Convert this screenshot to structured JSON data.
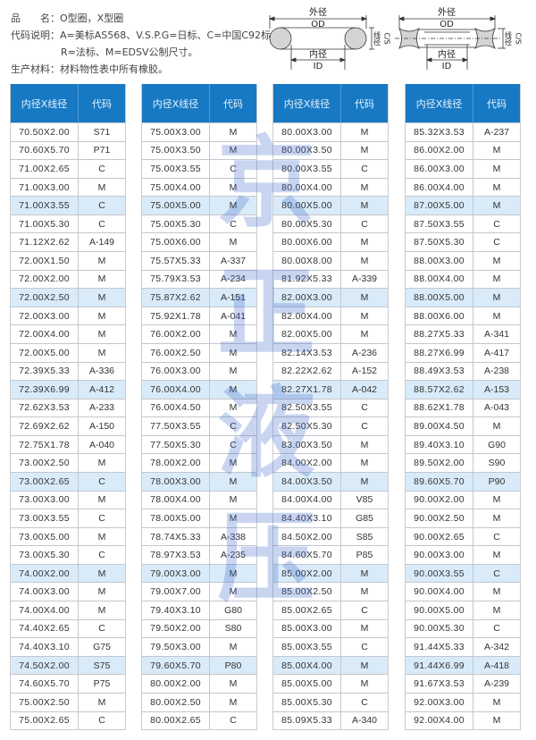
{
  "info": {
    "name_line": "品　　名：O型圈，X型圈",
    "code_line1": "代码说明：A=美标AS568、V.S.P.G=日标、C=中国C92标、",
    "code_line2": "R=法标、M=EDSV公制尺寸。",
    "material_line": "生产材料：材料物性表中所有橡胶。"
  },
  "diagrams": {
    "od_cn": "外径",
    "od": "OD",
    "id_cn": "内径",
    "id": "ID",
    "cs_cn": "线径",
    "cs": "C/S"
  },
  "watermark": [
    "京",
    "正",
    "液",
    "压"
  ],
  "colors": {
    "header": "#1779c4",
    "highlight_row": "#d9ebf8"
  },
  "header": {
    "size": "内径X线径",
    "code": "代码"
  },
  "tables": [
    {
      "rows": [
        [
          "70.50X2.00",
          "S71"
        ],
        [
          "70.60X5.70",
          "P71"
        ],
        [
          "71.00X2.65",
          "C"
        ],
        [
          "71.00X3.00",
          "M"
        ],
        [
          "71.00X3.55",
          "C"
        ],
        [
          "71.00X5.30",
          "C"
        ],
        [
          "71.12X2.62",
          "A-149"
        ],
        [
          "72.00X1.50",
          "M"
        ],
        [
          "72.00X2.00",
          "M"
        ],
        [
          "72.00X2.50",
          "M"
        ],
        [
          "72.00X3.00",
          "M"
        ],
        [
          "72.00X4.00",
          "M"
        ],
        [
          "72.00X5.00",
          "M"
        ],
        [
          "72.39X5.33",
          "A-336"
        ],
        [
          "72.39X6.99",
          "A-412"
        ],
        [
          "72.62X3.53",
          "A-233"
        ],
        [
          "72.69X2.62",
          "A-150"
        ],
        [
          "72.75X1.78",
          "A-040"
        ],
        [
          "73.00X2.50",
          "M"
        ],
        [
          "73.00X2.65",
          "C"
        ],
        [
          "73.00X3.00",
          "M"
        ],
        [
          "73.00X3.55",
          "C"
        ],
        [
          "73.00X5.00",
          "M"
        ],
        [
          "73.00X5.30",
          "C"
        ],
        [
          "74.00X2.00",
          "M"
        ],
        [
          "74.00X3.00",
          "M"
        ],
        [
          "74.00X4.00",
          "M"
        ],
        [
          "74.40X2.65",
          "C"
        ],
        [
          "74.40X3.10",
          "G75"
        ],
        [
          "74.50X2.00",
          "S75"
        ],
        [
          "74.60X5.70",
          "P75"
        ],
        [
          "75.00X2.50",
          "M"
        ],
        [
          "75.00X2.65",
          "C"
        ]
      ]
    },
    {
      "rows": [
        [
          "75.00X3.00",
          "M"
        ],
        [
          "75.00X3.50",
          "M"
        ],
        [
          "75.00X3.55",
          "C"
        ],
        [
          "75.00X4.00",
          "M"
        ],
        [
          "75.00X5.00",
          "M"
        ],
        [
          "75.00X5.30",
          "C"
        ],
        [
          "75.00X6.00",
          "M"
        ],
        [
          "75.57X5.33",
          "A-337"
        ],
        [
          "75.79X3.53",
          "A-234"
        ],
        [
          "75.87X2.62",
          "A-151"
        ],
        [
          "75.92X1.78",
          "A-041"
        ],
        [
          "76.00X2.00",
          "M"
        ],
        [
          "76.00X2.50",
          "M"
        ],
        [
          "76.00X3.00",
          "M"
        ],
        [
          "76.00X4.00",
          "M"
        ],
        [
          "76.00X4.50",
          "M"
        ],
        [
          "77.50X3.55",
          "C"
        ],
        [
          "77.50X5.30",
          "C"
        ],
        [
          "78.00X2.00",
          "M"
        ],
        [
          "78.00X3.00",
          "M"
        ],
        [
          "78.00X4.00",
          "M"
        ],
        [
          "78.00X5.00",
          "M"
        ],
        [
          "78.74X5.33",
          "A-338"
        ],
        [
          "78.97X3.53",
          "A-235"
        ],
        [
          "79.00X3.00",
          "M"
        ],
        [
          "79.00X7.00",
          "M"
        ],
        [
          "79.40X3.10",
          "G80"
        ],
        [
          "79.50X2.00",
          "S80"
        ],
        [
          "79.50X3.00",
          "M"
        ],
        [
          "79.60X5.70",
          "P80"
        ],
        [
          "80.00X2.00",
          "M"
        ],
        [
          "80.00X2.50",
          "M"
        ],
        [
          "80.00X2.65",
          "C"
        ]
      ]
    },
    {
      "rows": [
        [
          "80.00X3.00",
          "M"
        ],
        [
          "80.00X3.50",
          "M"
        ],
        [
          "80.00X3.55",
          "C"
        ],
        [
          "80.00X4.00",
          "M"
        ],
        [
          "80.00X5.00",
          "M"
        ],
        [
          "80.00X5.30",
          "C"
        ],
        [
          "80.00X6.00",
          "M"
        ],
        [
          "80.00X8.00",
          "M"
        ],
        [
          "81.92X5.33",
          "A-339"
        ],
        [
          "82.00X3.00",
          "M"
        ],
        [
          "82.00X4.00",
          "M"
        ],
        [
          "82.00X5.00",
          "M"
        ],
        [
          "82.14X3.53",
          "A-236"
        ],
        [
          "82.22X2.62",
          "A-152"
        ],
        [
          "82.27X1.78",
          "A-042"
        ],
        [
          "82.50X3.55",
          "C"
        ],
        [
          "82.50X5.30",
          "C"
        ],
        [
          "83.00X3.50",
          "M"
        ],
        [
          "84.00X2.00",
          "M"
        ],
        [
          "84.00X3.50",
          "M"
        ],
        [
          "84.00X4.00",
          "V85"
        ],
        [
          "84.40X3.10",
          "G85"
        ],
        [
          "84.50X2.00",
          "S85"
        ],
        [
          "84.60X5.70",
          "P85"
        ],
        [
          "85.00X2.00",
          "M"
        ],
        [
          "85.00X2.50",
          "M"
        ],
        [
          "85.00X2.65",
          "C"
        ],
        [
          "85.00X3.00",
          "M"
        ],
        [
          "85.00X3.55",
          "C"
        ],
        [
          "85.00X4.00",
          "M"
        ],
        [
          "85.00X5.00",
          "M"
        ],
        [
          "85.00X5.30",
          "C"
        ],
        [
          "85.09X5.33",
          "A-340"
        ]
      ]
    },
    {
      "rows": [
        [
          "85.32X3.53",
          "A-237"
        ],
        [
          "86.00X2.00",
          "M"
        ],
        [
          "86.00X3.00",
          "M"
        ],
        [
          "86.00X4.00",
          "M"
        ],
        [
          "87.00X5.00",
          "M"
        ],
        [
          "87.50X3.55",
          "C"
        ],
        [
          "87.50X5.30",
          "C"
        ],
        [
          "88.00X3.00",
          "M"
        ],
        [
          "88.00X4.00",
          "M"
        ],
        [
          "88.00X5.00",
          "M"
        ],
        [
          "88.00X6.00",
          "M"
        ],
        [
          "88.27X5.33",
          "A-341"
        ],
        [
          "88.27X6.99",
          "A-417"
        ],
        [
          "88.49X3.53",
          "A-238"
        ],
        [
          "88.57X2.62",
          "A-153"
        ],
        [
          "88.62X1.78",
          "A-043"
        ],
        [
          "89.00X4.50",
          "M"
        ],
        [
          "89.40X3.10",
          "G90"
        ],
        [
          "89.50X2.00",
          "S90"
        ],
        [
          "89.60X5.70",
          "P90"
        ],
        [
          "90.00X2.00",
          "M"
        ],
        [
          "90.00X2.50",
          "M"
        ],
        [
          "90.00X2.65",
          "C"
        ],
        [
          "90.00X3.00",
          "M"
        ],
        [
          "90.00X3.55",
          "C"
        ],
        [
          "90.00X4.00",
          "M"
        ],
        [
          "90.00X5.00",
          "M"
        ],
        [
          "90.00X5.30",
          "C"
        ],
        [
          "91.44X5.33",
          "A-342"
        ],
        [
          "91.44X6.99",
          "A-418"
        ],
        [
          "91.67X3.53",
          "A-239"
        ],
        [
          "92.00X3.00",
          "M"
        ],
        [
          "92.00X4.00",
          "M"
        ]
      ]
    }
  ]
}
